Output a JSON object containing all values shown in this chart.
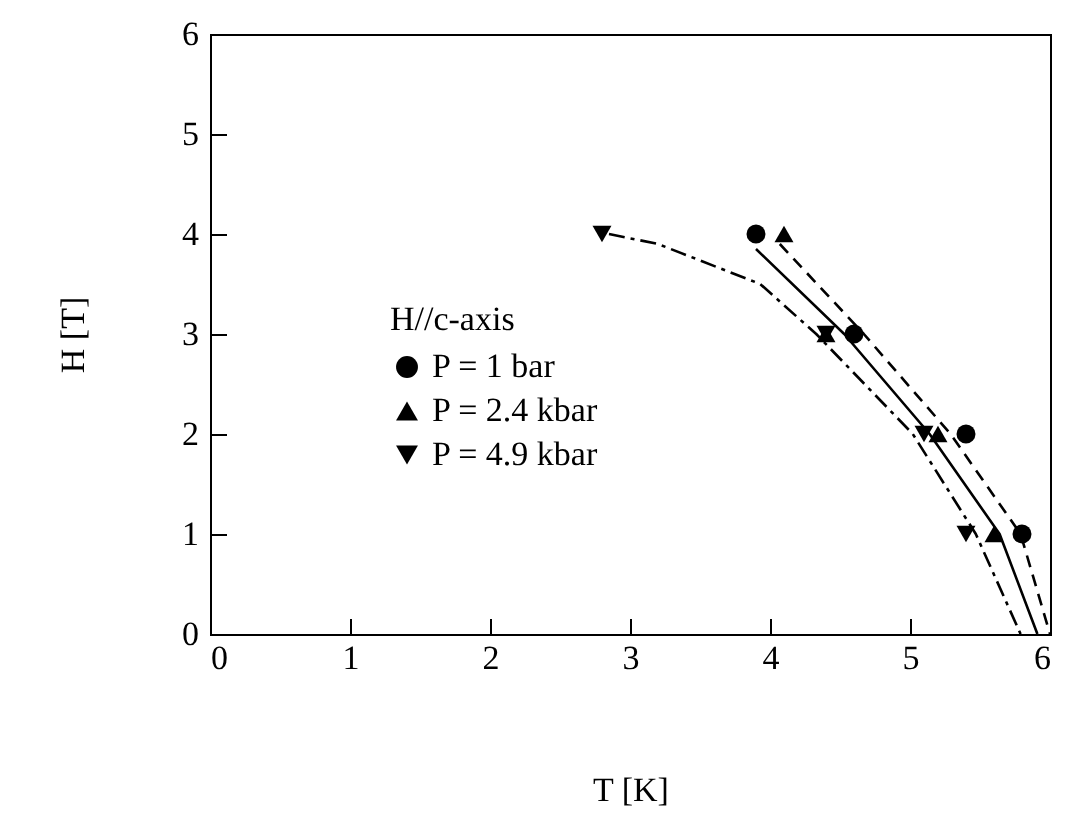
{
  "chart_data": {
    "type": "scatter",
    "xlabel": "T [K]",
    "ylabel": "H [T]",
    "legend_title": "H//c-axis",
    "legend": "left",
    "grid": false,
    "xlim": [
      0,
      6
    ],
    "xticks": [
      0,
      1,
      2,
      3,
      4,
      5,
      6
    ],
    "ylim": [
      0,
      6
    ],
    "yticks": [
      0,
      1,
      2,
      3,
      4,
      5,
      6
    ],
    "series": [
      {
        "type": "scatter",
        "name": "P = 1 bar",
        "color": "#000000",
        "marker": "circle",
        "x": [
          3.9,
          4.6,
          5.4,
          5.8
        ],
        "values": [
          4,
          3,
          2,
          1
        ]
      },
      {
        "type": "scatter",
        "name": "P = 2.4 kbar",
        "color": "#000000",
        "marker": "triangle",
        "x": [
          4.1,
          4.4,
          5.2,
          5.6
        ],
        "values": [
          4,
          3,
          2,
          1
        ]
      },
      {
        "type": "scatter",
        "name": "P = 4.9 kbar",
        "color": "#000000",
        "marker": "triangle-down",
        "x": [
          2.8,
          4.4,
          5.1,
          5.4
        ],
        "values": [
          4,
          3,
          2,
          1
        ]
      },
      {
        "type": "line",
        "color": "#000000",
        "line_style": "dashed",
        "x": [
          4.07,
          4.67,
          5.29,
          5.79,
          6.0
        ],
        "values": [
          3.9,
          3,
          2,
          1,
          0
        ]
      },
      {
        "type": "line",
        "color": "#000000",
        "line_style": "solid",
        "x": [
          3.9,
          4.53,
          5.14,
          5.64,
          5.91
        ],
        "values": [
          3.85,
          3,
          2,
          1,
          0
        ]
      },
      {
        "type": "line",
        "color": "#000000",
        "line_style": "dashdot",
        "x": [
          2.85,
          3.2,
          3.93,
          4.33,
          5.02,
          5.47,
          5.79
        ],
        "values": [
          4,
          3.9,
          3.5,
          3,
          2,
          1,
          0
        ]
      }
    ]
  }
}
